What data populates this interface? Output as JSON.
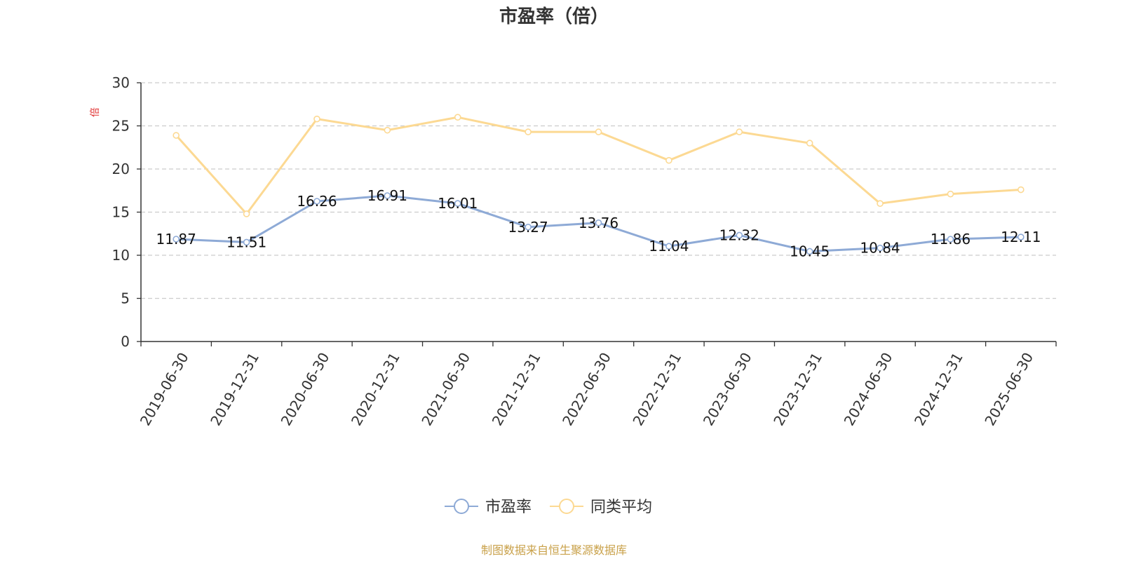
{
  "chart_data": {
    "type": "line",
    "title": "市盈率（倍）",
    "ylabel": "倍",
    "ylim": [
      0,
      30
    ],
    "yticks": [
      0,
      5,
      10,
      15,
      20,
      25,
      30
    ],
    "grid": "horizontal-dashed",
    "legend_position": "bottom-center",
    "categories": [
      "2019-06-30",
      "2019-12-31",
      "2020-06-30",
      "2020-12-31",
      "2021-06-30",
      "2021-12-31",
      "2022-06-30",
      "2022-12-31",
      "2023-06-30",
      "2023-12-31",
      "2024-06-30",
      "2024-12-31",
      "2025-06-30"
    ],
    "series": [
      {
        "name": "市盈率",
        "color": "#8eaad6",
        "show_labels": true,
        "values": [
          11.87,
          11.51,
          16.26,
          16.91,
          16.01,
          13.27,
          13.76,
          11.04,
          12.32,
          10.45,
          10.84,
          11.86,
          12.11
        ]
      },
      {
        "name": "同类平均",
        "color": "#fcd993",
        "show_labels": false,
        "values": [
          23.9,
          14.8,
          25.8,
          24.5,
          26.0,
          24.3,
          24.3,
          21.0,
          24.3,
          23.0,
          16.0,
          17.1,
          17.6
        ]
      }
    ],
    "unit_label_color": "#e03030"
  },
  "source_note": "制图数据来自恒生聚源数据库",
  "source_note_color": "#c9a14a"
}
